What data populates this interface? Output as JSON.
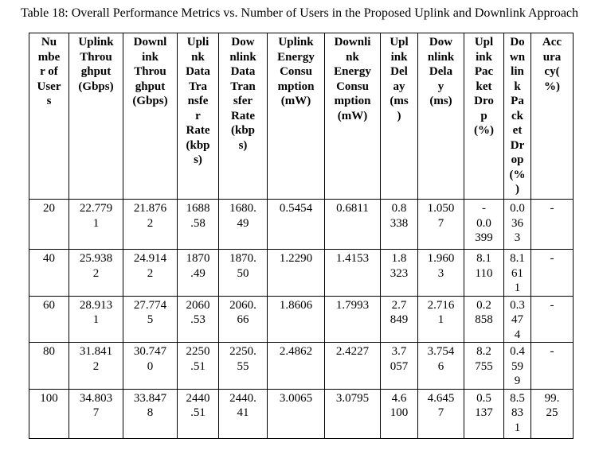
{
  "caption": "Table 18: Overall Performance Metrics vs. Number of Users in the Proposed Uplink and Downlink Approach",
  "table": {
    "headers": [
      "Nu\nmbe\nr of\nUser\ns",
      "Uplink\nThrou\nghput\n(Gbps)",
      "Downl\nink\nThrou\nghput\n(Gbps)",
      "Upli\nnk\nData\nTra\nnsfe\nr\nRate\n(kbp\ns)",
      "Dow\nnlink\nData\nTran\nsfer\nRate\n(kbp\ns)",
      "Uplink\nEnergy\nConsu\nmption\n(mW)",
      "Downli\nnk\nEnergy\nConsu\nmption\n(mW)",
      "Upl\nink\nDel\nay\n(ms\n)",
      "Dow\nnlink\nDela\ny\n(ms)",
      "Upl\nink\nPac\nket\nDro\np\n(%)",
      "Do\nwn\nlin\nk\nPa\nck\net\nDr\nop\n(%\n)",
      "Acc\nura\ncy(\n%)"
    ],
    "rows": [
      [
        "20",
        "22.779\n1",
        "21.876\n2",
        "1688\n.58",
        "1680.\n49",
        "0.5454",
        "0.6811",
        "0.8\n338",
        "1.050\n7",
        "-\n0.0\n399",
        "0.0\n36\n3",
        "-"
      ],
      [
        "40",
        "25.938\n2",
        "24.914\n2",
        "1870\n.49",
        "1870.\n50",
        "1.2290",
        "1.4153",
        "1.8\n323",
        "1.960\n3",
        "8.1\n110",
        "8.1\n61\n1",
        "-"
      ],
      [
        "60",
        "28.913\n1",
        "27.774\n5",
        "2060\n.53",
        "2060.\n66",
        "1.8606",
        "1.7993",
        "2.7\n849",
        "2.716\n1",
        "0.2\n858",
        "0.3\n47\n4",
        "-"
      ],
      [
        "80",
        "31.841\n2",
        "30.747\n0",
        "2250\n.51",
        "2250.\n55",
        "2.4862",
        "2.4227",
        "3.7\n057",
        "3.754\n6",
        "8.2\n755",
        "0.4\n59\n9",
        "-"
      ],
      [
        "100",
        "34.803\n7",
        "33.847\n8",
        "2440\n.51",
        "2440.\n41",
        "3.0065",
        "3.0795",
        "4.6\n100",
        "4.645\n7",
        "0.5\n137",
        "8.5\n83\n1",
        "99.\n25"
      ]
    ]
  }
}
